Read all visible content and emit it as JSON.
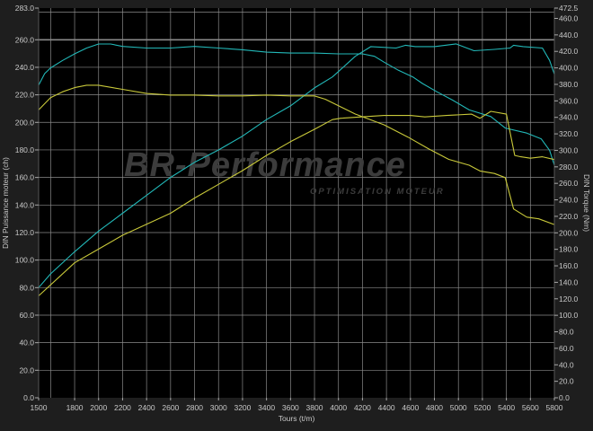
{
  "chart_data": {
    "type": "line",
    "title": "",
    "xlabel": "Tours (t/m)",
    "ylabel_left": "DIN Puissance moteur (ch)",
    "ylabel_right": "DIN Torque (Nm)",
    "xlim": [
      1500,
      5800
    ],
    "ylim_left": [
      0,
      283
    ],
    "ylim_right": [
      0,
      472.5
    ],
    "grid": true,
    "x_tick_labels": [
      "1500",
      "1800",
      "2000",
      "2200",
      "2400",
      "2600",
      "2800",
      "3000",
      "3200",
      "3400",
      "3600",
      "3800",
      "4000",
      "4200",
      "4400",
      "4600",
      "4800",
      "5000",
      "5200",
      "5400",
      "5600",
      "5800"
    ],
    "y_left_tick_labels": [
      "0.0",
      "20.0",
      "40.0",
      "60.0",
      "80.0",
      "100.0",
      "120.0",
      "140.0",
      "160.0",
      "180.0",
      "200.0",
      "220.0",
      "240.0",
      "260.0",
      "283.0"
    ],
    "y_right_tick_labels": [
      "0.0",
      "20.0",
      "40.0",
      "60.0",
      "80.0",
      "100.0",
      "120.0",
      "140.0",
      "160.0",
      "180.0",
      "200.0",
      "220.0",
      "240.0",
      "260.0",
      "280.0",
      "300.0",
      "320.0",
      "340.0",
      "360.0",
      "380.0",
      "400.0",
      "420.0",
      "440.0",
      "460.0",
      "472.5"
    ],
    "colors": {
      "cyan": "#22b8b8",
      "yellow": "#c9c93a"
    },
    "series": [
      {
        "color": "cyan",
        "axis": "left",
        "quantity": "power",
        "x": [
          1500,
          1600,
          1800,
          2000,
          2200,
          2400,
          2600,
          2800,
          3000,
          3200,
          3400,
          3600,
          3800,
          3950,
          4140,
          4270,
          4480,
          4560,
          4640,
          4800,
          4980,
          5130,
          5300,
          5430,
          5460,
          5540,
          5700,
          5760,
          5800
        ],
        "y": [
          80,
          90,
          106,
          121,
          134,
          147,
          160,
          171,
          180,
          190,
          202,
          212,
          225,
          233,
          248,
          255,
          254,
          256,
          255,
          255,
          257,
          252,
          253,
          254,
          256,
          255,
          254,
          245,
          235
        ]
      },
      {
        "color": "cyan",
        "axis": "right",
        "quantity": "torque",
        "x": [
          1500,
          1550,
          1600,
          1700,
          1800,
          1900,
          2000,
          2100,
          2200,
          2400,
          2600,
          2800,
          3000,
          3200,
          3400,
          3600,
          3800,
          4000,
          4200,
          4300,
          4380,
          4500,
          4620,
          4700,
          4820,
          4950,
          5090,
          5270,
          5390,
          5570,
          5690,
          5760,
          5800
        ],
        "y": [
          379,
          393,
          400,
          409,
          417,
          424,
          429,
          429,
          426,
          424,
          424,
          426,
          424,
          422,
          419,
          418,
          418,
          417,
          417,
          414,
          407,
          397,
          389,
          381,
          371,
          361,
          349,
          341,
          327,
          321,
          314,
          300,
          282
        ]
      },
      {
        "color": "yellow",
        "axis": "left",
        "quantity": "power",
        "x": [
          1500,
          1800,
          2000,
          2200,
          2400,
          2600,
          2800,
          3000,
          3200,
          3400,
          3600,
          3800,
          3950,
          4020,
          4380,
          4600,
          4720,
          4900,
          5110,
          5180,
          5270,
          5400,
          5470,
          5520,
          5600,
          5700,
          5800
        ],
        "y": [
          74,
          98,
          108,
          118,
          126,
          134,
          145,
          155,
          165,
          176,
          186,
          195,
          202,
          203,
          205,
          205,
          204,
          205,
          206,
          203,
          208,
          206,
          176,
          175,
          174,
          175,
          173
        ]
      },
      {
        "color": "yellow",
        "axis": "right",
        "quantity": "torque",
        "x": [
          1500,
          1600,
          1700,
          1800,
          1900,
          2000,
          2200,
          2400,
          2600,
          2800,
          3000,
          3200,
          3400,
          3600,
          3800,
          3890,
          4140,
          4380,
          4580,
          4750,
          4920,
          5090,
          5180,
          5300,
          5390,
          5460,
          5570,
          5670,
          5800
        ],
        "y": [
          349,
          364,
          371,
          376,
          379,
          379,
          374,
          369,
          367,
          367,
          366,
          366,
          367,
          366,
          366,
          362,
          344,
          331,
          316,
          302,
          289,
          282,
          275,
          272,
          267,
          229,
          219,
          217,
          210
        ]
      }
    ]
  },
  "watermark": {
    "logo": "BR-Performance",
    "tagline": "OPTIMISATION MOTEUR"
  }
}
